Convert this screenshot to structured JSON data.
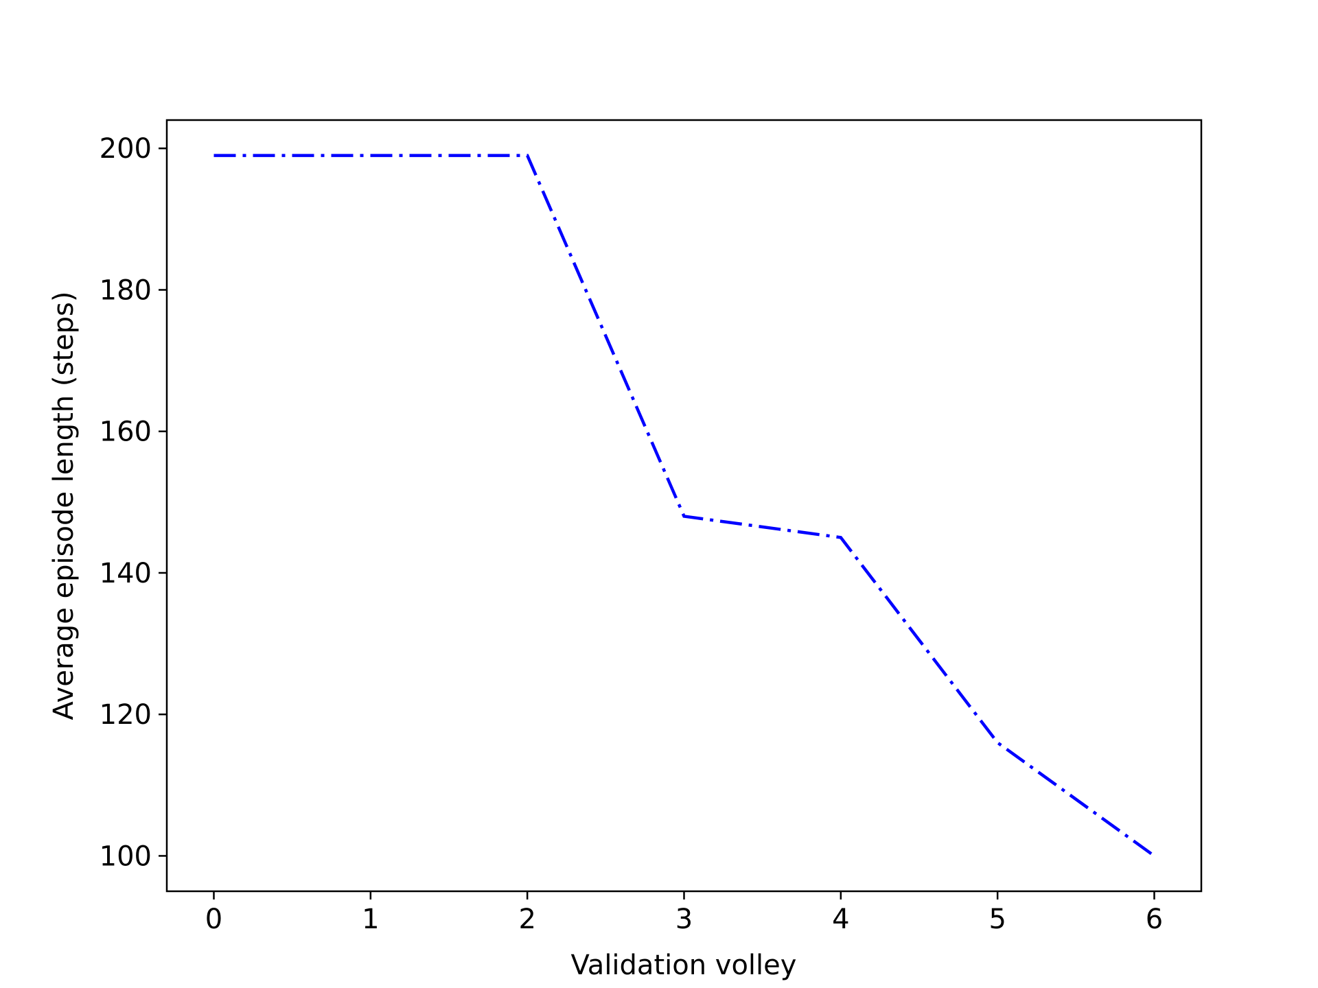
{
  "chart_data": {
    "type": "line",
    "title": "",
    "xlabel": "Validation volley",
    "ylabel": "Average episode length (steps)",
    "x": [
      0,
      1,
      2,
      3,
      4,
      5,
      6
    ],
    "series": [
      {
        "values": [
          199,
          199,
          199,
          148,
          145,
          116,
          100
        ],
        "color": "#0000ff",
        "linestyle": "dashdot"
      }
    ],
    "xlim": [
      -0.3,
      6.3
    ],
    "ylim": [
      95,
      204
    ],
    "xticks": [
      0,
      1,
      2,
      3,
      4,
      5,
      6
    ],
    "yticks": [
      100,
      120,
      140,
      160,
      180,
      200
    ],
    "grid": false,
    "legend": "none"
  }
}
